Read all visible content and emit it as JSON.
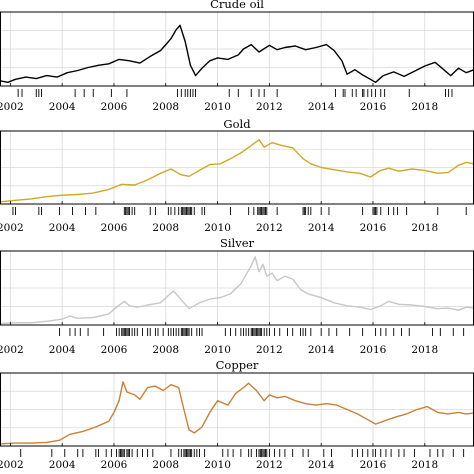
{
  "chart_data": [
    {
      "type": "line",
      "title": "Crude oil",
      "color": "#000000",
      "xlim": [
        2001.6,
        2019.9
      ],
      "ylim": [
        0,
        1
      ],
      "grid": true,
      "xticks": [
        2002,
        2004,
        2006,
        2008,
        2010,
        2012,
        2014,
        2016,
        2018
      ],
      "xtick_labels": [
        "2002",
        "2004",
        "2006",
        "2008",
        "2010",
        "2012",
        "2014",
        "2016",
        "2018"
      ],
      "series": [
        {
          "x": [
            2001.6,
            2001.9,
            2002.2,
            2002.6,
            2003.0,
            2003.4,
            2003.8,
            2004.2,
            2004.6,
            2005.0,
            2005.4,
            2005.8,
            2006.2,
            2006.6,
            2007.0,
            2007.4,
            2007.8,
            2008.0,
            2008.2,
            2008.4,
            2008.55,
            2008.75,
            2008.95,
            2009.15,
            2009.4,
            2009.7,
            2010.0,
            2010.4,
            2010.8,
            2011.0,
            2011.3,
            2011.6,
            2012.0,
            2012.3,
            2012.6,
            2013.0,
            2013.4,
            2013.8,
            2014.2,
            2014.5,
            2014.8,
            2015.0,
            2015.3,
            2015.6,
            2015.9,
            2016.1,
            2016.4,
            2016.8,
            2017.2,
            2017.6,
            2018.0,
            2018.4,
            2018.8,
            2019.0,
            2019.3,
            2019.6,
            2019.9
          ],
          "y": [
            0.07,
            0.05,
            0.09,
            0.12,
            0.1,
            0.14,
            0.12,
            0.18,
            0.21,
            0.25,
            0.28,
            0.3,
            0.36,
            0.34,
            0.31,
            0.4,
            0.48,
            0.56,
            0.64,
            0.76,
            0.82,
            0.6,
            0.28,
            0.14,
            0.24,
            0.34,
            0.38,
            0.36,
            0.42,
            0.5,
            0.56,
            0.46,
            0.55,
            0.49,
            0.52,
            0.54,
            0.49,
            0.52,
            0.56,
            0.48,
            0.34,
            0.16,
            0.22,
            0.15,
            0.09,
            0.05,
            0.14,
            0.19,
            0.13,
            0.2,
            0.27,
            0.32,
            0.2,
            0.14,
            0.24,
            0.18,
            0.22
          ]
        }
      ],
      "rug": [
        2002.3,
        2002.45,
        2003.0,
        2003.1,
        2003.2,
        2004.5,
        2004.85,
        2005.2,
        2005.9,
        2006.5,
        2008.45,
        2008.6,
        2008.75,
        2008.85,
        2008.95,
        2009.05,
        2009.15,
        2010.45,
        2010.8,
        2011.3,
        2011.6,
        2011.8,
        2012.3,
        2014.55,
        2014.85,
        2014.92,
        2015.2,
        2015.35,
        2015.6,
        2015.65,
        2015.8,
        2015.95,
        2016.1,
        2016.3,
        2016.45,
        2017.4,
        2018.8,
        2018.92,
        2019.05
      ]
    },
    {
      "type": "line",
      "title": "Gold",
      "color": "#d1a826",
      "xlim": [
        2001.6,
        2019.9
      ],
      "ylim": [
        0,
        1
      ],
      "grid": true,
      "xticks": [
        2002,
        2004,
        2006,
        2008,
        2010,
        2012,
        2014,
        2016,
        2018
      ],
      "xtick_labels": [
        "2002",
        "2004",
        "2006",
        "2008",
        "2010",
        "2012",
        "2014",
        "2016",
        "2018"
      ],
      "series": [
        {
          "x": [
            2001.6,
            2002.2,
            2002.8,
            2003.4,
            2004.0,
            2004.6,
            2005.2,
            2005.8,
            2006.3,
            2006.8,
            2007.3,
            2007.8,
            2008.2,
            2008.6,
            2008.9,
            2009.3,
            2009.7,
            2010.1,
            2010.5,
            2010.9,
            2011.3,
            2011.6,
            2011.8,
            2012.1,
            2012.5,
            2012.9,
            2013.3,
            2013.6,
            2014.0,
            2014.5,
            2015.0,
            2015.5,
            2015.9,
            2016.3,
            2016.6,
            2017.0,
            2017.5,
            2018.0,
            2018.5,
            2018.9,
            2019.3,
            2019.6,
            2019.9
          ],
          "y": [
            0.03,
            0.05,
            0.07,
            0.1,
            0.12,
            0.13,
            0.15,
            0.2,
            0.27,
            0.26,
            0.33,
            0.42,
            0.48,
            0.4,
            0.38,
            0.46,
            0.54,
            0.55,
            0.62,
            0.7,
            0.8,
            0.88,
            0.78,
            0.84,
            0.8,
            0.77,
            0.62,
            0.55,
            0.5,
            0.47,
            0.44,
            0.42,
            0.37,
            0.46,
            0.49,
            0.45,
            0.48,
            0.46,
            0.42,
            0.43,
            0.53,
            0.57,
            0.55
          ]
        }
      ],
      "rug": [
        2002.1,
        2002.2,
        2003.1,
        2003.2,
        2003.9,
        2004.4,
        2004.9,
        2005.3,
        2006.4,
        2006.45,
        2006.5,
        2006.55,
        2006.6,
        2006.7,
        2006.8,
        2007.4,
        2007.6,
        2008.1,
        2008.2,
        2008.35,
        2008.5,
        2008.6,
        2008.65,
        2008.7,
        2008.75,
        2008.8,
        2008.85,
        2008.9,
        2008.95,
        2009.0,
        2009.1,
        2009.4,
        2009.5,
        2010.5,
        2011.2,
        2011.4,
        2011.55,
        2011.6,
        2011.65,
        2011.7,
        2011.75,
        2011.8,
        2011.85,
        2011.9,
        2012.3,
        2013.3,
        2013.35,
        2013.4,
        2013.5,
        2013.6,
        2014.0,
        2014.3,
        2015.6,
        2016.0,
        2016.05,
        2016.1,
        2016.15,
        2016.3,
        2016.6,
        2016.8,
        2016.95,
        2017.3,
        2018.5,
        2019.6
      ]
    },
    {
      "type": "line",
      "title": "Silver",
      "color": "#c7c7c7",
      "xlim": [
        2001.6,
        2019.9
      ],
      "ylim": [
        0,
        1
      ],
      "grid": true,
      "xticks": [
        2002,
        2004,
        2006,
        2008,
        2010,
        2012,
        2014,
        2016,
        2018
      ],
      "xtick_labels": [
        "2002",
        "2004",
        "2006",
        "2008",
        "2010",
        "2012",
        "2014",
        "2016",
        "2018"
      ],
      "series": [
        {
          "x": [
            2001.6,
            2002.2,
            2002.8,
            2003.4,
            2004.0,
            2004.3,
            2004.6,
            2005.2,
            2005.8,
            2006.1,
            2006.4,
            2006.6,
            2006.9,
            2007.3,
            2007.8,
            2008.1,
            2008.3,
            2008.6,
            2008.9,
            2009.3,
            2009.7,
            2010.1,
            2010.5,
            2010.9,
            2011.1,
            2011.3,
            2011.45,
            2011.6,
            2011.75,
            2011.9,
            2012.1,
            2012.3,
            2012.6,
            2012.9,
            2013.2,
            2013.5,
            2014.0,
            2014.5,
            2015.0,
            2015.5,
            2015.9,
            2016.3,
            2016.6,
            2017.0,
            2017.5,
            2018.0,
            2018.5,
            2018.9,
            2019.3,
            2019.6,
            2019.9
          ],
          "y": [
            0.02,
            0.03,
            0.03,
            0.05,
            0.08,
            0.12,
            0.09,
            0.1,
            0.15,
            0.24,
            0.32,
            0.26,
            0.24,
            0.27,
            0.3,
            0.4,
            0.46,
            0.34,
            0.22,
            0.3,
            0.35,
            0.37,
            0.42,
            0.56,
            0.68,
            0.8,
            0.92,
            0.72,
            0.82,
            0.66,
            0.7,
            0.6,
            0.66,
            0.62,
            0.48,
            0.42,
            0.37,
            0.3,
            0.26,
            0.24,
            0.21,
            0.26,
            0.32,
            0.28,
            0.27,
            0.25,
            0.22,
            0.23,
            0.2,
            0.24,
            0.23
          ]
        }
      ],
      "rug": [
        2003.9,
        2004.3,
        2004.5,
        2004.7,
        2005.0,
        2005.6,
        2006.1,
        2006.2,
        2006.3,
        2006.35,
        2006.4,
        2006.45,
        2006.5,
        2006.55,
        2006.6,
        2006.7,
        2006.8,
        2006.9,
        2007.1,
        2007.3,
        2007.4,
        2007.6,
        2007.7,
        2007.9,
        2008.1,
        2008.2,
        2008.3,
        2008.4,
        2008.5,
        2008.6,
        2008.65,
        2008.7,
        2008.75,
        2008.8,
        2008.85,
        2008.9,
        2009.0,
        2009.2,
        2009.3,
        2009.4,
        2010.3,
        2010.5,
        2010.7,
        2010.9,
        2011.0,
        2011.1,
        2011.2,
        2011.3,
        2011.35,
        2011.4,
        2011.45,
        2011.5,
        2011.55,
        2011.6,
        2011.65,
        2011.7,
        2011.8,
        2011.9,
        2012.0,
        2012.2,
        2012.4,
        2012.7,
        2012.9,
        2013.2,
        2013.3,
        2013.4,
        2013.6,
        2014.0,
        2014.3,
        2014.6,
        2015.1,
        2015.6,
        2016.1,
        2016.3,
        2016.5,
        2016.8,
        2017.1,
        2017.4,
        2018.3,
        2018.6,
        2019.1,
        2019.5
      ]
    },
    {
      "type": "line",
      "title": "Copper",
      "color": "#c98133",
      "xlim": [
        2001.6,
        2019.9
      ],
      "ylim": [
        0,
        1
      ],
      "grid": true,
      "xticks": [
        2002,
        2004,
        2006,
        2008,
        2010,
        2012,
        2014,
        2016,
        2018
      ],
      "xtick_labels": [
        "2002",
        "2004",
        "2006",
        "2008",
        "2010",
        "2012",
        "2014",
        "2016",
        "2018"
      ],
      "series": [
        {
          "x": [
            2001.6,
            2002.2,
            2002.8,
            2003.4,
            2003.9,
            2004.3,
            2004.8,
            2005.3,
            2005.8,
            2006.0,
            2006.2,
            2006.35,
            2006.5,
            2006.8,
            2007.0,
            2007.3,
            2007.6,
            2007.9,
            2008.2,
            2008.5,
            2008.7,
            2008.9,
            2009.1,
            2009.4,
            2009.7,
            2010.0,
            2010.4,
            2010.7,
            2011.0,
            2011.2,
            2011.5,
            2011.8,
            2012.0,
            2012.3,
            2012.6,
            2013.0,
            2013.4,
            2013.8,
            2014.2,
            2014.6,
            2015.0,
            2015.4,
            2015.8,
            2016.1,
            2016.5,
            2016.9,
            2017.3,
            2017.7,
            2018.1,
            2018.5,
            2018.9,
            2019.3,
            2019.6,
            2019.9
          ],
          "y": [
            0.03,
            0.04,
            0.04,
            0.05,
            0.08,
            0.16,
            0.2,
            0.26,
            0.34,
            0.46,
            0.62,
            0.88,
            0.74,
            0.7,
            0.64,
            0.8,
            0.82,
            0.76,
            0.84,
            0.8,
            0.5,
            0.22,
            0.18,
            0.26,
            0.46,
            0.62,
            0.56,
            0.72,
            0.8,
            0.86,
            0.76,
            0.62,
            0.7,
            0.66,
            0.68,
            0.62,
            0.58,
            0.56,
            0.58,
            0.56,
            0.5,
            0.44,
            0.36,
            0.3,
            0.35,
            0.4,
            0.44,
            0.5,
            0.54,
            0.46,
            0.44,
            0.46,
            0.44,
            0.45
          ]
        }
      ],
      "rug": [
        2002.4,
        2003.6,
        2004.1,
        2004.6,
        2004.8,
        2005.3,
        2005.4,
        2005.7,
        2005.9,
        2006.1,
        2006.2,
        2006.25,
        2006.3,
        2006.35,
        2006.4,
        2006.5,
        2006.55,
        2006.6,
        2006.7,
        2006.9,
        2007.1,
        2007.3,
        2007.5,
        2008.2,
        2008.5,
        2008.6,
        2008.7,
        2008.75,
        2008.8,
        2008.85,
        2008.9,
        2008.95,
        2009.0,
        2009.1,
        2009.2,
        2009.3,
        2009.5,
        2010.2,
        2010.4,
        2010.6,
        2010.9,
        2011.2,
        2011.3,
        2011.5,
        2011.6,
        2011.65,
        2011.7,
        2011.75,
        2011.8,
        2011.85,
        2011.9,
        2012.0,
        2012.2,
        2012.4,
        2012.6,
        2012.9,
        2013.3,
        2013.5,
        2014.1,
        2014.4,
        2015.2,
        2015.4,
        2015.6,
        2015.8,
        2016.0,
        2016.1,
        2016.3,
        2016.5,
        2016.7,
        2017.0,
        2017.2,
        2017.6,
        2018.2,
        2018.5,
        2018.7,
        2019.1,
        2019.5
      ]
    }
  ]
}
